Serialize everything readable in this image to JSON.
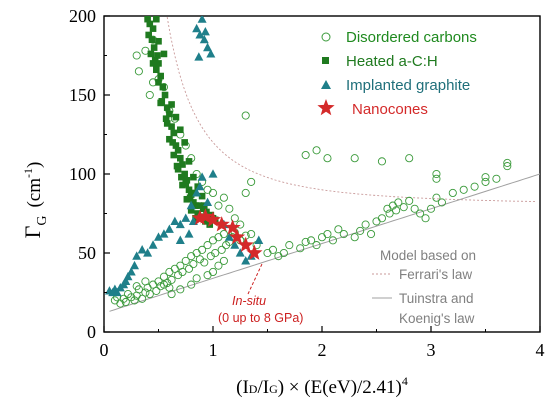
{
  "chart_data": {
    "type": "scatter",
    "xlabel": "(ID/IG) × (E(eV)/2.41)4",
    "xlabel_parts": {
      "a": "(I",
      "b": "D",
      "c": "/I",
      "d": "G",
      "e": ") × (E(eV)/2.41)",
      "f": "4"
    },
    "ylabel_parts": {
      "main": "Γ",
      "sub": "G",
      "unit_open": "(cm",
      "unit_exp": "-1",
      "unit_close": ")"
    },
    "xlim": [
      0,
      4
    ],
    "ylim": [
      0,
      200
    ],
    "x_ticks": [
      "0",
      "1",
      "2",
      "3",
      "4"
    ],
    "y_ticks": [
      "0",
      "50",
      "100",
      "150",
      "200"
    ],
    "legend_position": "top-right",
    "colors": {
      "disordered": "#3a9a3a",
      "heated": "#1f7a1f",
      "implanted": "#1f7f8a",
      "nanocones": "#d42a2a",
      "model": "#9a9a9a",
      "ferrari": "#c08080"
    },
    "series": [
      {
        "name": "Disordered carbons",
        "marker": "open-circle",
        "points": [
          [
            0.1,
            20
          ],
          [
            0.12,
            22
          ],
          [
            0.15,
            18
          ],
          [
            0.18,
            21
          ],
          [
            0.2,
            19
          ],
          [
            0.22,
            24
          ],
          [
            0.25,
            22
          ],
          [
            0.28,
            20
          ],
          [
            0.3,
            23
          ],
          [
            0.32,
            27
          ],
          [
            0.35,
            21
          ],
          [
            0.38,
            25
          ],
          [
            0.4,
            28
          ],
          [
            0.42,
            24
          ],
          [
            0.45,
            30
          ],
          [
            0.48,
            26
          ],
          [
            0.5,
            32
          ],
          [
            0.52,
            29
          ],
          [
            0.55,
            35
          ],
          [
            0.58,
            31
          ],
          [
            0.6,
            38
          ],
          [
            0.62,
            33
          ],
          [
            0.65,
            40
          ],
          [
            0.68,
            36
          ],
          [
            0.7,
            42
          ],
          [
            0.72,
            38
          ],
          [
            0.75,
            45
          ],
          [
            0.78,
            40
          ],
          [
            0.8,
            48
          ],
          [
            0.82,
            43
          ],
          [
            0.85,
            50
          ],
          [
            0.88,
            46
          ],
          [
            0.9,
            52
          ],
          [
            0.92,
            44
          ],
          [
            0.95,
            55
          ],
          [
            0.98,
            48
          ],
          [
            1.0,
            58
          ],
          [
            1.02,
            50
          ],
          [
            1.05,
            60
          ],
          [
            1.08,
            52
          ],
          [
            1.1,
            62
          ],
          [
            1.12,
            55
          ],
          [
            1.15,
            57
          ],
          [
            1.18,
            60
          ],
          [
            1.2,
            63
          ],
          [
            1.25,
            58
          ],
          [
            1.3,
            61
          ],
          [
            1.35,
            62
          ],
          [
            1.4,
            55
          ],
          [
            1.5,
            50
          ],
          [
            1.55,
            52
          ],
          [
            1.6,
            48
          ],
          [
            1.65,
            50
          ],
          [
            1.7,
            55
          ],
          [
            1.8,
            53
          ],
          [
            1.85,
            57
          ],
          [
            1.9,
            58
          ],
          [
            1.95,
            55
          ],
          [
            2.0,
            60
          ],
          [
            2.05,
            62
          ],
          [
            2.1,
            58
          ],
          [
            2.15,
            65
          ],
          [
            2.2,
            62
          ],
          [
            2.3,
            60
          ],
          [
            2.35,
            64
          ],
          [
            2.4,
            68
          ],
          [
            2.45,
            62
          ],
          [
            2.5,
            70
          ],
          [
            2.55,
            72
          ],
          [
            2.6,
            78
          ],
          [
            2.62,
            75
          ],
          [
            2.65,
            80
          ],
          [
            2.68,
            77
          ],
          [
            2.7,
            82
          ],
          [
            2.75,
            79
          ],
          [
            2.8,
            83
          ],
          [
            2.85,
            78
          ],
          [
            2.9,
            75
          ],
          [
            2.95,
            72
          ],
          [
            3.0,
            78
          ],
          [
            3.05,
            85
          ],
          [
            3.1,
            82
          ],
          [
            3.2,
            88
          ],
          [
            3.3,
            90
          ],
          [
            3.4,
            92
          ],
          [
            3.5,
            95
          ],
          [
            3.6,
            97
          ],
          [
            3.7,
            105
          ],
          [
            0.42,
            150
          ],
          [
            0.45,
            158
          ],
          [
            0.5,
            160
          ],
          [
            0.55,
            155
          ],
          [
            0.6,
            140
          ],
          [
            0.65,
            135
          ],
          [
            0.7,
            125
          ],
          [
            0.75,
            118
          ],
          [
            0.8,
            110
          ],
          [
            0.85,
            100
          ],
          [
            0.9,
            95
          ],
          [
            0.95,
            90
          ],
          [
            1.0,
            88
          ],
          [
            1.05,
            80
          ],
          [
            1.1,
            85
          ],
          [
            1.15,
            78
          ],
          [
            1.2,
            72
          ],
          [
            1.25,
            68
          ],
          [
            1.3,
            88
          ],
          [
            1.35,
            95
          ],
          [
            0.3,
            175
          ],
          [
            0.32,
            165
          ],
          [
            0.38,
            178
          ],
          [
            0.45,
            185
          ],
          [
            1.3,
            137
          ],
          [
            1.85,
            112
          ],
          [
            1.95,
            115
          ],
          [
            2.05,
            110
          ],
          [
            2.3,
            110
          ],
          [
            2.55,
            108
          ],
          [
            2.8,
            110
          ],
          [
            3.05,
            100
          ],
          [
            3.05,
            97
          ],
          [
            3.5,
            98
          ],
          [
            3.7,
            107
          ],
          [
            0.3,
            29
          ],
          [
            0.38,
            32
          ],
          [
            0.55,
            30
          ],
          [
            0.6,
            28
          ],
          [
            0.62,
            24
          ],
          [
            0.7,
            27
          ],
          [
            0.8,
            30
          ],
          [
            0.85,
            34
          ],
          [
            0.95,
            36
          ],
          [
            1.0,
            38
          ],
          [
            1.05,
            42
          ],
          [
            1.1,
            45
          ]
        ]
      },
      {
        "name": "Heated a-C:H",
        "marker": "filled-square",
        "points": [
          [
            0.4,
            198
          ],
          [
            0.42,
            195
          ],
          [
            0.45,
            192
          ],
          [
            0.48,
            198
          ],
          [
            0.41,
            188
          ],
          [
            0.44,
            185
          ],
          [
            0.46,
            180
          ],
          [
            0.43,
            176
          ],
          [
            0.47,
            172
          ],
          [
            0.5,
            170
          ],
          [
            0.48,
            166
          ],
          [
            0.52,
            162
          ],
          [
            0.5,
            158
          ],
          [
            0.54,
            155
          ],
          [
            0.56,
            150
          ],
          [
            0.53,
            146
          ],
          [
            0.58,
            142
          ],
          [
            0.6,
            138
          ],
          [
            0.57,
            135
          ],
          [
            0.62,
            130
          ],
          [
            0.64,
            126
          ],
          [
            0.6,
            122
          ],
          [
            0.66,
            118
          ],
          [
            0.68,
            115
          ],
          [
            0.64,
            112
          ],
          [
            0.7,
            110
          ],
          [
            0.72,
            106
          ],
          [
            0.68,
            103
          ],
          [
            0.74,
            100
          ],
          [
            0.76,
            96
          ],
          [
            0.72,
            93
          ],
          [
            0.78,
            90
          ],
          [
            0.8,
            87
          ],
          [
            0.76,
            84
          ],
          [
            0.82,
            82
          ],
          [
            0.84,
            80
          ],
          [
            0.8,
            77
          ],
          [
            0.86,
            75
          ],
          [
            0.88,
            73
          ],
          [
            0.84,
            72
          ],
          [
            0.9,
            72
          ],
          [
            0.55,
            176
          ],
          [
            0.5,
            184
          ],
          [
            0.62,
            144
          ],
          [
            0.66,
            136
          ],
          [
            0.7,
            128
          ],
          [
            0.74,
            120
          ],
          [
            0.78,
            108
          ],
          [
            0.82,
            98
          ],
          [
            0.86,
            92
          ],
          [
            0.9,
            86
          ],
          [
            0.92,
            80
          ],
          [
            0.94,
            76
          ],
          [
            0.96,
            73
          ],
          [
            0.98,
            74
          ],
          [
            1.0,
            72
          ],
          [
            0.58,
            132
          ],
          [
            0.63,
            120
          ],
          [
            0.67,
            105
          ],
          [
            0.71,
            98
          ],
          [
            0.75,
            94
          ],
          [
            0.79,
            85
          ],
          [
            0.83,
            88
          ],
          [
            0.87,
            80
          ],
          [
            0.91,
            78
          ],
          [
            0.93,
            70
          ],
          [
            0.97,
            68
          ],
          [
            1.02,
            71
          ],
          [
            0.45,
            170
          ],
          [
            0.49,
            175
          ],
          [
            0.52,
            145
          ]
        ]
      },
      {
        "name": "Implanted graphite",
        "marker": "filled-triangle",
        "points": [
          [
            0.05,
            26
          ],
          [
            0.08,
            25
          ],
          [
            0.1,
            27
          ],
          [
            0.12,
            25
          ],
          [
            0.15,
            28
          ],
          [
            0.18,
            30
          ],
          [
            0.2,
            32
          ],
          [
            0.22,
            35
          ],
          [
            0.25,
            38
          ],
          [
            0.28,
            42
          ],
          [
            0.3,
            48
          ],
          [
            0.35,
            52
          ],
          [
            0.4,
            50
          ],
          [
            0.45,
            55
          ],
          [
            0.5,
            60
          ],
          [
            0.55,
            62
          ],
          [
            0.6,
            65
          ],
          [
            0.65,
            70
          ],
          [
            0.7,
            68
          ],
          [
            0.75,
            72
          ],
          [
            0.8,
            80
          ],
          [
            0.85,
            88
          ],
          [
            0.88,
            92
          ],
          [
            0.9,
            98
          ],
          [
            1.0,
            100
          ],
          [
            0.85,
            192
          ],
          [
            0.88,
            188
          ],
          [
            0.9,
            198
          ],
          [
            0.92,
            185
          ],
          [
            0.95,
            180
          ],
          [
            0.98,
            176
          ],
          [
            0.87,
            174
          ],
          [
            0.93,
            190
          ],
          [
            1.1,
            68
          ],
          [
            1.15,
            60
          ],
          [
            1.2,
            55
          ],
          [
            1.25,
            50
          ],
          [
            1.3,
            45
          ],
          [
            1.35,
            48
          ],
          [
            1.42,
            58
          ],
          [
            0.7,
            58
          ],
          [
            0.78,
            62
          ],
          [
            0.82,
            70
          ],
          [
            0.95,
            82
          ]
        ]
      },
      {
        "name": "Nanocones",
        "marker": "star",
        "points": [
          [
            0.88,
            72
          ],
          [
            0.93,
            73
          ],
          [
            1.0,
            71
          ],
          [
            1.08,
            68
          ],
          [
            1.18,
            66
          ],
          [
            1.22,
            60
          ],
          [
            1.3,
            55
          ],
          [
            1.38,
            50
          ]
        ]
      }
    ],
    "model_curves": {
      "title": "Model based on",
      "ferrari_label": "Ferrari's law",
      "tk_label_1": "Tuinstra and",
      "tk_label_2": "Koenig's law"
    },
    "annotation": {
      "line1": "In-situ",
      "line2": "(0 up to 8 GPa)"
    }
  }
}
